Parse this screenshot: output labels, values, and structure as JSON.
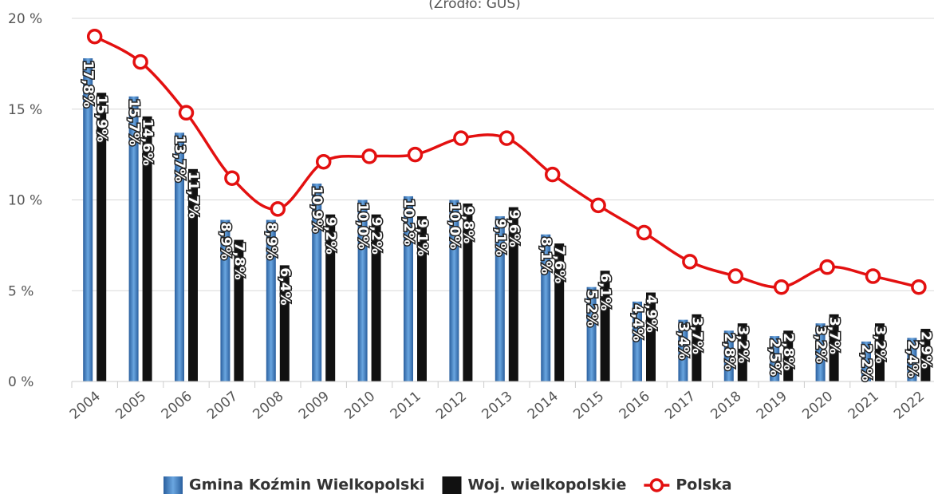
{
  "chart_data": {
    "type": "bar",
    "subtitle": "(Źródło: GUS)",
    "categories": [
      "2004",
      "2005",
      "2006",
      "2007",
      "2008",
      "2009",
      "2010",
      "2011",
      "2012",
      "2013",
      "2014",
      "2015",
      "2016",
      "2017",
      "2018",
      "2019",
      "2020",
      "2021",
      "2022"
    ],
    "series": [
      {
        "name": "Gmina Koźmin Wielkopolski",
        "color": "#3d7ec4",
        "type": "bar",
        "values": [
          17.8,
          15.7,
          13.7,
          8.9,
          8.9,
          10.9,
          10.0,
          10.2,
          10.0,
          9.1,
          8.1,
          5.2,
          4.4,
          3.4,
          2.8,
          2.5,
          3.2,
          2.2,
          2.4
        ],
        "value_labels": [
          "17,8%",
          "15,7%",
          "13,7%",
          "8,9%",
          "8,9%",
          "10,9%",
          "10,0%",
          "10,2%",
          "10,0%",
          "9,1%",
          "8,1%",
          "5,2%",
          "4,4%",
          "3,4%",
          "2,8%",
          "2,5%",
          "3,2%",
          "2,2%",
          "2,4%"
        ]
      },
      {
        "name": "Woj. wielkopolskie",
        "color": "#111111",
        "type": "bar",
        "values": [
          15.9,
          14.6,
          11.7,
          7.8,
          6.4,
          9.2,
          9.2,
          9.1,
          9.8,
          9.6,
          7.6,
          6.1,
          4.9,
          3.7,
          3.2,
          2.8,
          3.7,
          3.2,
          2.9
        ],
        "value_labels": [
          "15,9%",
          "14,6%",
          "11,7%",
          "7,8%",
          "6,4%",
          "9,2%",
          "9,2%",
          "9,1%",
          "9,8%",
          "9,6%",
          "7,6%",
          "6,1%",
          "4,9%",
          "3,7%",
          "3,2%",
          "2,8%",
          "3,7%",
          "3,2%",
          "2,9%"
        ]
      },
      {
        "name": "Polska",
        "color": "#e31010",
        "type": "line",
        "values": [
          19.0,
          17.6,
          14.8,
          11.2,
          9.5,
          12.1,
          12.4,
          12.5,
          13.4,
          13.4,
          11.4,
          9.7,
          8.2,
          6.6,
          5.8,
          5.2,
          6.3,
          5.8,
          5.2
        ]
      }
    ],
    "ylim": [
      0,
      20
    ],
    "yticks": [
      {
        "value": 0,
        "label": "0 %"
      },
      {
        "value": 5,
        "label": "5 %"
      },
      {
        "value": 10,
        "label": "10 %"
      },
      {
        "value": 15,
        "label": "15 %"
      },
      {
        "value": 20,
        "label": "20 %"
      }
    ],
    "grid": true,
    "legend": "bottom"
  }
}
